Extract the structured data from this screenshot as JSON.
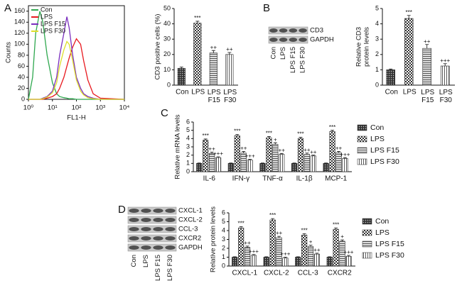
{
  "chart_data": [
    {
      "type": "line",
      "panel": "A",
      "xlabel": "FL1-H",
      "ylabel": "Counts",
      "log_x": true,
      "legend": "upper left",
      "x": [
        1,
        1.5,
        2,
        3,
        4,
        6,
        10,
        15,
        20,
        30,
        40,
        50,
        70,
        100,
        150,
        200,
        300,
        500,
        1000,
        10000
      ],
      "xlim": [
        1,
        10000
      ],
      "xticks": [
        {
          "value": 1,
          "label": "10⁰"
        },
        {
          "value": 10,
          "label": "10¹"
        },
        {
          "value": 100,
          "label": "10²"
        },
        {
          "value": 1000,
          "label": "10³"
        },
        {
          "value": 10000,
          "label": "10⁴"
        }
      ],
      "ylim": [
        0,
        170
      ],
      "yticks": [
        0,
        20,
        40,
        60,
        80,
        100,
        120,
        140,
        160
      ],
      "series": [
        {
          "name": "Con",
          "color": "#2fa84f",
          "values": [
            0,
            40,
            120,
            160,
            140,
            80,
            30,
            10,
            5,
            3,
            2,
            1,
            1,
            0,
            0,
            0,
            0,
            0,
            0,
            0
          ]
        },
        {
          "name": "LPS",
          "color": "#e8191f",
          "values": [
            0,
            0,
            0,
            0,
            0,
            2,
            5,
            10,
            20,
            40,
            60,
            75,
            95,
            110,
            100,
            70,
            35,
            10,
            2,
            0
          ]
        },
        {
          "name": "LPS F15",
          "color": "#7b2fbe",
          "values": [
            0,
            0,
            0,
            0,
            2,
            5,
            15,
            40,
            80,
            120,
            150,
            130,
            80,
            40,
            20,
            10,
            5,
            2,
            0,
            0
          ]
        },
        {
          "name": "LPS F30",
          "color": "#dede2a",
          "values": [
            0,
            0,
            0,
            0,
            1,
            4,
            12,
            30,
            60,
            90,
            105,
            100,
            70,
            35,
            15,
            8,
            3,
            1,
            0,
            0
          ]
        }
      ]
    },
    {
      "type": "bar",
      "ylabel": "CD3 positive cells (%)",
      "categories": [
        "Con",
        "LPS",
        "LPS F15",
        "LPS F30"
      ],
      "values": [
        11,
        40.5,
        21,
        20
      ],
      "errors": [
        0.8,
        1.2,
        1.6,
        1.3
      ],
      "annotations": [
        null,
        "***",
        "++",
        "++"
      ],
      "color": "#333333",
      "patterns": [
        "dots",
        "checker",
        "hlines",
        "vlines"
      ],
      "ylim": [
        0,
        50
      ],
      "yticks": [
        0,
        10,
        20,
        30,
        40,
        50
      ]
    },
    {
      "type": "bar",
      "panel": "B",
      "ylabel": "Relative CD3 protein levels",
      "blot": {
        "bands": [
          "CD3",
          "GAPDH"
        ],
        "lanes": [
          "Con",
          "LPS",
          "LPS F15",
          "LPS F30"
        ]
      },
      "categories": [
        "Con",
        "LPS",
        "LPS F15",
        "LPS F30"
      ],
      "values": [
        1,
        4.35,
        2.4,
        1.25
      ],
      "errors": [
        0.05,
        0.2,
        0.25,
        0.15
      ],
      "annotations": [
        null,
        "***",
        "++",
        "+++"
      ],
      "color": "#333333",
      "patterns": [
        "dots",
        "checker",
        "hlines",
        "vlines"
      ],
      "ylim": [
        0,
        5
      ],
      "yticks": [
        0,
        1,
        2,
        3,
        4,
        5
      ]
    },
    {
      "type": "bar",
      "panel": "C",
      "ylabel": "Relative mRNA levels",
      "legend": "right",
      "categories": [
        "IL-6",
        "IFN-γ",
        "TNF-α",
        "IL-1β",
        "MCP-1"
      ],
      "ylim": [
        0,
        6
      ],
      "yticks": [
        0,
        1,
        2,
        3,
        4,
        5,
        6
      ],
      "series": [
        {
          "name": "Con",
          "color": "#333333",
          "pattern": "dots",
          "values": [
            1,
            1,
            1,
            1,
            1
          ],
          "errors": [
            0.05,
            0.05,
            0.05,
            0.05,
            0.05
          ],
          "annotations": [
            null,
            null,
            null,
            null,
            null
          ]
        },
        {
          "name": "LPS",
          "color": "#333333",
          "pattern": "checker",
          "values": [
            3.8,
            4.35,
            4.1,
            4.0,
            4.85
          ],
          "errors": [
            0.15,
            0.15,
            0.15,
            0.15,
            0.15
          ],
          "annotations": [
            "***",
            "***",
            "***",
            "***",
            "***"
          ]
        },
        {
          "name": "LPS F15",
          "color": "#333333",
          "pattern": "hlines",
          "values": [
            2.2,
            2.25,
            3.3,
            2.1,
            2.3
          ],
          "errors": [
            0.15,
            0.2,
            0.2,
            0.15,
            0.15
          ],
          "annotations": [
            "++",
            "++",
            "+",
            "++",
            "++"
          ]
        },
        {
          "name": "LPS F30",
          "color": "#333333",
          "pattern": "vlines",
          "values": [
            1.7,
            1.4,
            2.1,
            1.9,
            1.6
          ],
          "errors": [
            0.1,
            0.1,
            0.1,
            0.1,
            0.1
          ],
          "annotations": [
            "+++",
            "+++",
            "++",
            "++",
            "+++"
          ]
        }
      ]
    },
    {
      "type": "bar",
      "panel": "D",
      "ylabel": "Relative protein levels",
      "legend": "right",
      "blot": {
        "bands": [
          "CXCL-1",
          "CXCL-2",
          "CCL-3",
          "CXCR2",
          "GAPDH"
        ],
        "lanes": [
          "Con",
          "LPS",
          "LPS F15",
          "LPS F30"
        ]
      },
      "categories": [
        "CXCL-1",
        "CXCL-2",
        "CCL-3",
        "CXCR2"
      ],
      "ylim": [
        0,
        6
      ],
      "yticks": [
        0,
        1,
        2,
        3,
        4,
        5,
        6
      ],
      "series": [
        {
          "name": "Con",
          "color": "#333333",
          "pattern": "dots",
          "values": [
            1,
            1,
            1,
            1
          ],
          "errors": [
            0.05,
            0.05,
            0.05,
            0.05
          ],
          "annotations": [
            null,
            null,
            null,
            null
          ]
        },
        {
          "name": "LPS",
          "color": "#333333",
          "pattern": "checker",
          "values": [
            4.3,
            5.2,
            3.5,
            4.15
          ],
          "errors": [
            0.15,
            0.15,
            0.15,
            0.15
          ],
          "annotations": [
            "***",
            "***",
            "***",
            "***"
          ]
        },
        {
          "name": "LPS F15",
          "color": "#333333",
          "pattern": "hlines",
          "values": [
            2.1,
            3.2,
            2.2,
            2.8
          ],
          "errors": [
            0.15,
            0.15,
            0.15,
            0.15
          ],
          "annotations": [
            "++",
            "++",
            "+",
            "+"
          ]
        },
        {
          "name": "LPS F30",
          "color": "#333333",
          "pattern": "vlines",
          "values": [
            1.2,
            0.9,
            1.35,
            1.1
          ],
          "errors": [
            0.1,
            0.1,
            0.1,
            0.1
          ],
          "annotations": [
            "+++",
            "+++",
            "++",
            "+++"
          ]
        }
      ]
    }
  ]
}
